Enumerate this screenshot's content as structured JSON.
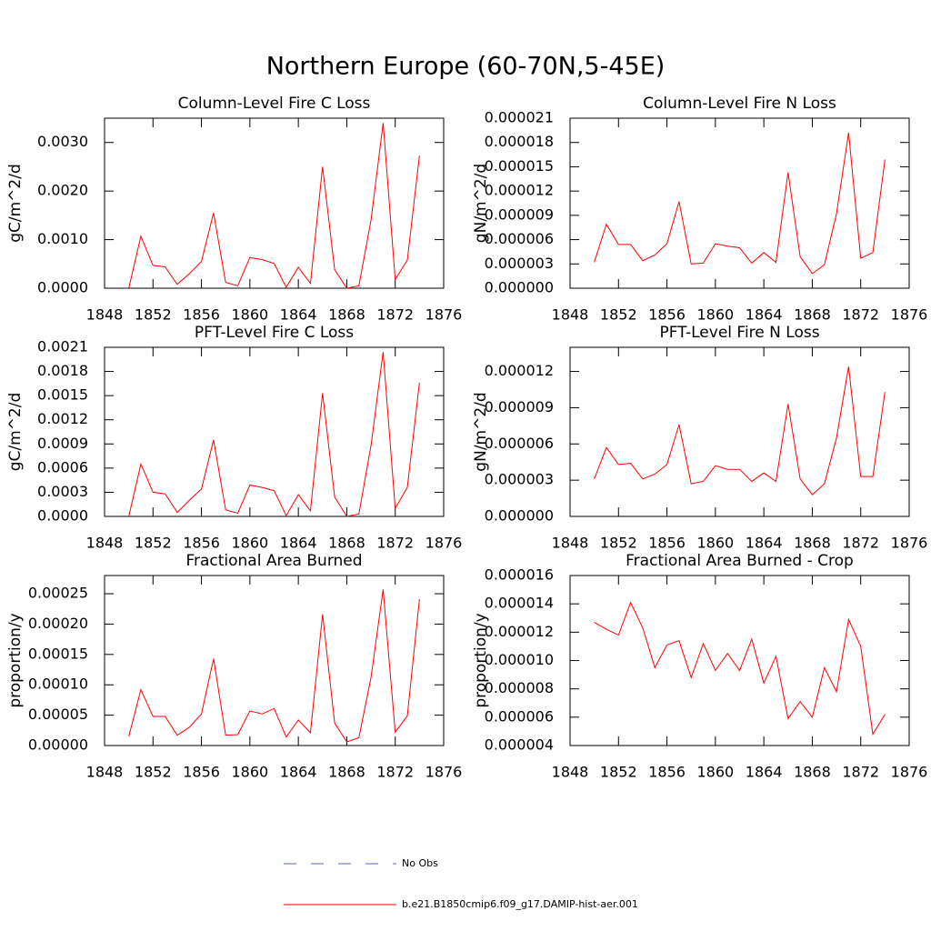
{
  "title": "Northern Europe (60-70N,5-45E)",
  "legend": [
    {
      "name": "No Obs",
      "color": "#5566bb",
      "dash": true
    },
    {
      "name": "b.e21.B1850cmip6.f09_g17.DAMIP-hist-aer.001",
      "color": "#ff0000",
      "dash": false
    }
  ],
  "chart_data": [
    {
      "type": "line",
      "title": "Column-Level Fire C Loss",
      "ylabel": "gC/m^2/d",
      "color": "#ff0000",
      "x": [
        1850,
        1851,
        1852,
        1853,
        1854,
        1855,
        1856,
        1857,
        1858,
        1859,
        1860,
        1861,
        1862,
        1863,
        1864,
        1865,
        1866,
        1867,
        1868,
        1869,
        1870,
        1871,
        1872,
        1873,
        1874
      ],
      "values": [
        0,
        0.00107,
        0.00047,
        0.00044,
        8e-05,
        0.0003,
        0.00055,
        0.00155,
        0.00012,
        5e-05,
        0.00063,
        0.00059,
        0.00051,
        2e-05,
        0.00043,
        0.0001,
        0.0025,
        0.00038,
        0,
        5e-05,
        0.0014,
        0.0034,
        0.00018,
        0.00058,
        0.00273
      ],
      "xlim": [
        1848,
        1876
      ],
      "xticks": [
        1848,
        1852,
        1856,
        1860,
        1864,
        1868,
        1872,
        1876
      ],
      "ylim": [
        0,
        0.0035
      ],
      "yticks": [
        {
          "value": 0,
          "label": "0.0000"
        },
        {
          "value": 0.001,
          "label": "0.0010"
        },
        {
          "value": 0.002,
          "label": "0.0020"
        },
        {
          "value": 0.003,
          "label": "0.0030"
        }
      ]
    },
    {
      "type": "line",
      "title": "Column-Level Fire N Loss",
      "ylabel": "gN/m^2/d",
      "color": "#ff0000",
      "x": [
        1850,
        1851,
        1852,
        1853,
        1854,
        1855,
        1856,
        1857,
        1858,
        1859,
        1860,
        1861,
        1862,
        1863,
        1864,
        1865,
        1866,
        1867,
        1868,
        1869,
        1870,
        1871,
        1872,
        1873,
        1874
      ],
      "values": [
        3.2e-06,
        7.9e-06,
        5.4e-06,
        5.4e-06,
        3.4e-06,
        4.1e-06,
        5.5e-06,
        1.07e-05,
        3e-06,
        3.1e-06,
        5.5e-06,
        5.2e-06,
        5e-06,
        3.1e-06,
        4.4e-06,
        3.2e-06,
        1.43e-05,
        3.9e-06,
        1.8e-06,
        2.9e-06,
        9.2e-06,
        1.92e-05,
        3.7e-06,
        4.4e-06,
        1.59e-05
      ],
      "xlim": [
        1848,
        1876
      ],
      "xticks": [
        1848,
        1852,
        1856,
        1860,
        1864,
        1868,
        1872,
        1876
      ],
      "ylim": [
        0,
        2.1e-05
      ],
      "yticks": [
        {
          "value": 0,
          "label": "0.000000"
        },
        3e-06,
        6e-06,
        9e-06,
        1.2e-05,
        1.5e-05,
        1.8e-05,
        2.1e-05
      ]
    },
    {
      "type": "line",
      "title": "PFT-Level Fire C Loss",
      "ylabel": "gC/m^2/d",
      "color": "#ff0000",
      "x": [
        1850,
        1851,
        1852,
        1853,
        1854,
        1855,
        1856,
        1857,
        1858,
        1859,
        1860,
        1861,
        1862,
        1863,
        1864,
        1865,
        1866,
        1867,
        1868,
        1869,
        1870,
        1871,
        1872,
        1873,
        1874
      ],
      "values": [
        0,
        0.00065,
        0.0003,
        0.00028,
        5e-05,
        0.0002,
        0.00034,
        0.00095,
        8e-05,
        4e-05,
        0.00039,
        0.00036,
        0.00032,
        1e-05,
        0.00027,
        7e-05,
        0.00153,
        0.00024,
        0,
        3e-05,
        0.00088,
        0.00204,
        0.0001,
        0.00036,
        0.00166
      ],
      "xlim": [
        1848,
        1876
      ],
      "xticks": [
        1848,
        1852,
        1856,
        1860,
        1864,
        1868,
        1872,
        1876
      ],
      "ylim": [
        0,
        0.0021
      ],
      "yticks": [
        {
          "value": 0,
          "label": "0.0000"
        },
        0.0003,
        0.0006,
        0.0009,
        0.0012,
        0.0015,
        0.0018,
        0.0021
      ]
    },
    {
      "type": "line",
      "title": "PFT-Level Fire N Loss",
      "ylabel": "gN/m^2/d",
      "color": "#ff0000",
      "x": [
        1850,
        1851,
        1852,
        1853,
        1854,
        1855,
        1856,
        1857,
        1858,
        1859,
        1860,
        1861,
        1862,
        1863,
        1864,
        1865,
        1866,
        1867,
        1868,
        1869,
        1870,
        1871,
        1872,
        1873,
        1874
      ],
      "values": [
        3.1e-06,
        5.7e-06,
        4.3e-06,
        4.4e-06,
        3.1e-06,
        3.5e-06,
        4.3e-06,
        7.6e-06,
        2.7e-06,
        2.9e-06,
        4.2e-06,
        3.9e-06,
        3.9e-06,
        2.9e-06,
        3.6e-06,
        2.9e-06,
        9.3e-06,
        3.1e-06,
        1.8e-06,
        2.7e-06,
        6.5e-06,
        1.24e-05,
        3.3e-06,
        3.3e-06,
        1.03e-05
      ],
      "xlim": [
        1848,
        1876
      ],
      "xticks": [
        1848,
        1852,
        1856,
        1860,
        1864,
        1868,
        1872,
        1876
      ],
      "ylim": [
        0,
        1.4e-05
      ],
      "yticks": [
        {
          "value": 0,
          "label": "0.000000"
        },
        3e-06,
        6e-06,
        9e-06,
        1.2e-05
      ]
    },
    {
      "type": "line",
      "title": "Fractional Area Burned",
      "ylabel": "proportion/y",
      "color": "#ff0000",
      "x": [
        1850,
        1851,
        1852,
        1853,
        1854,
        1855,
        1856,
        1857,
        1858,
        1859,
        1860,
        1861,
        1862,
        1863,
        1864,
        1865,
        1866,
        1867,
        1868,
        1869,
        1870,
        1871,
        1872,
        1873,
        1874
      ],
      "values": [
        1.5e-05,
        9.2e-05,
        4.8e-05,
        4.8e-05,
        1.7e-05,
        3e-05,
        5.2e-05,
        0.000143,
        1.7e-05,
        1.8e-05,
        5.7e-05,
        5.2e-05,
        6.1e-05,
        1.4e-05,
        4.2e-05,
        2.1e-05,
        0.000216,
        3.7e-05,
        6e-06,
        1.3e-05,
        0.000112,
        0.000257,
        2.2e-05,
        4.9e-05,
        0.000241
      ],
      "xlim": [
        1848,
        1876
      ],
      "xticks": [
        1848,
        1852,
        1856,
        1860,
        1864,
        1868,
        1872,
        1876
      ],
      "ylim": [
        0,
        0.00028
      ],
      "yticks": [
        {
          "value": 0,
          "label": "0.00000"
        },
        5e-05,
        {
          "value": 0.0001,
          "label": "0.00010"
        },
        0.00015,
        {
          "value": 0.0002,
          "label": "0.00020"
        },
        0.00025
      ]
    },
    {
      "type": "line",
      "title": "Fractional Area Burned - Crop",
      "ylabel": "proportion/y",
      "color": "#ff0000",
      "x": [
        1850,
        1851,
        1852,
        1853,
        1854,
        1855,
        1856,
        1857,
        1858,
        1859,
        1860,
        1861,
        1862,
        1863,
        1864,
        1865,
        1866,
        1867,
        1868,
        1869,
        1870,
        1871,
        1872,
        1873,
        1874
      ],
      "values": [
        1.27e-05,
        1.22e-05,
        1.18e-05,
        1.41e-05,
        1.23e-05,
        9.5e-06,
        1.11e-05,
        1.14e-05,
        8.8e-06,
        1.12e-05,
        9.3e-06,
        1.05e-05,
        9.3e-06,
        1.15e-05,
        8.4e-06,
        1.03e-05,
        5.9e-06,
        7.1e-06,
        6e-06,
        9.5e-06,
        7.8e-06,
        1.29e-05,
        1.1e-05,
        4.8e-06,
        6.2e-06
      ],
      "xlim": [
        1848,
        1876
      ],
      "xticks": [
        1848,
        1852,
        1856,
        1860,
        1864,
        1868,
        1872,
        1876
      ],
      "ylim": [
        4e-06,
        1.6e-05
      ],
      "yticks": [
        4e-06,
        6e-06,
        8e-06,
        {
          "value": 1e-05,
          "label": "0.000010"
        },
        1.2e-05,
        1.4e-05,
        1.6e-05
      ]
    }
  ]
}
